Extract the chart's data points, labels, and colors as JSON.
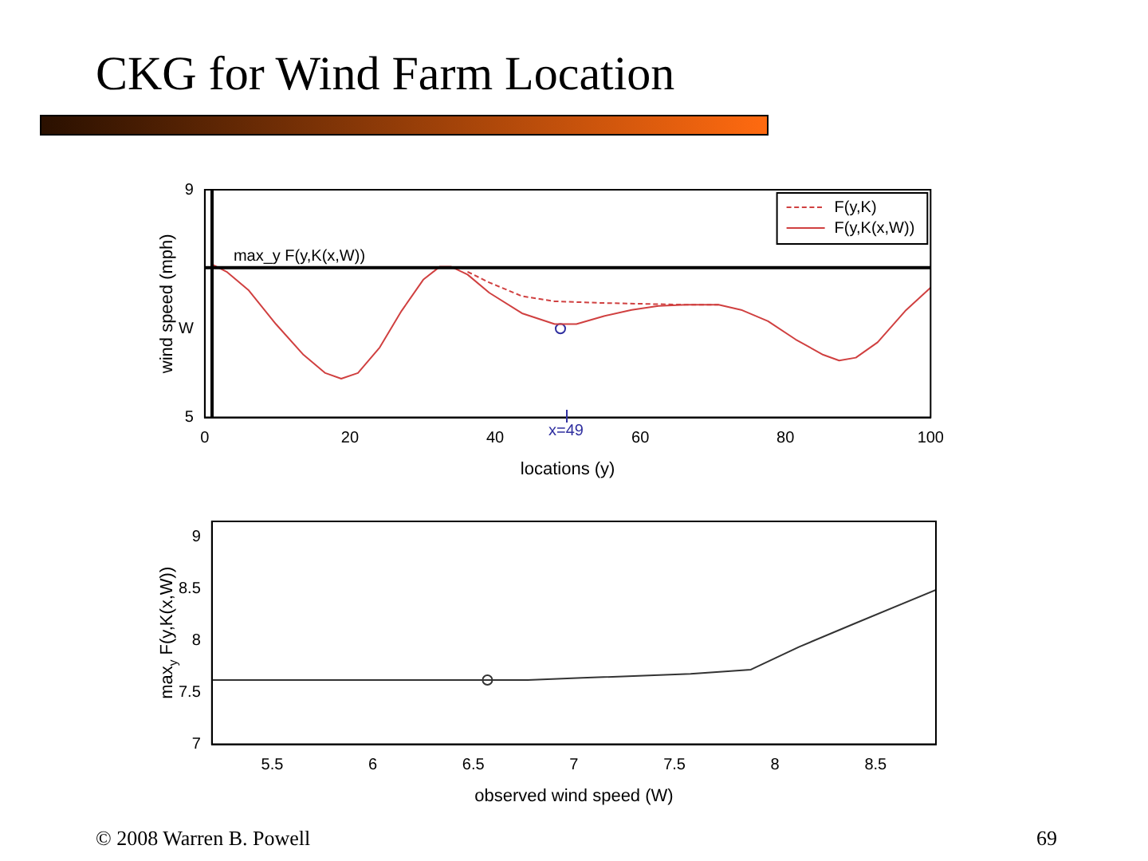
{
  "chart_data": [
    {
      "type": "line",
      "title": "CKG for Wind Farm Location",
      "xlabel": "locations (y)",
      "ylabel": "wind speed (mph)",
      "xlim": [
        0,
        100
      ],
      "xticks": [
        0,
        20,
        40,
        60,
        80,
        100
      ],
      "ylim": [
        5,
        9
      ],
      "yticks": [
        5,
        {
          "value": 6.56,
          "label": "W"
        },
        9
      ],
      "grid": false,
      "legend": "top right",
      "series": [
        {
          "name": "F(y,K)",
          "type": "line",
          "line_style": "dashed",
          "color": "#d04040",
          "x": [
            36.2,
            39.2,
            43.7,
            48.2,
            55.0,
            62.5,
            66.3,
            70.8
          ],
          "values": [
            7.56,
            7.37,
            7.13,
            7.04,
            7.01,
            6.99,
            6.98,
            6.98
          ]
        },
        {
          "name": "F(y,K(x,W))",
          "type": "line",
          "line_style": "solid",
          "color": "#d04040",
          "x": [
            1,
            3,
            6,
            9.8,
            13.6,
            16.6,
            18.8,
            21.1,
            24.1,
            27.1,
            30.1,
            32.4,
            33.9,
            36.2,
            39.2,
            43.7,
            48.2,
            51.2,
            55.0,
            58.8,
            62.5,
            66.3,
            70.8,
            73.9,
            77.6,
            81.4,
            85.2,
            87.4,
            89.7,
            92.7,
            96.5,
            100
          ],
          "values": [
            7.69,
            7.56,
            7.24,
            6.64,
            6.1,
            5.78,
            5.68,
            5.78,
            6.23,
            6.87,
            7.42,
            7.65,
            7.65,
            7.51,
            7.19,
            6.83,
            6.64,
            6.64,
            6.78,
            6.89,
            6.96,
            6.98,
            6.98,
            6.89,
            6.69,
            6.37,
            6.1,
            6.0,
            6.05,
            6.32,
            6.87,
            7.28
          ]
        },
        {
          "type": "scatter",
          "marker": "circle",
          "color": "#3030a0",
          "x": [
            49
          ],
          "values": [
            6.56
          ]
        }
      ],
      "ref_lines": [
        {
          "axis": "y",
          "value": 7.63,
          "label": "max_y F(y,K(x,W))",
          "color": "#000000"
        },
        {
          "axis": "x",
          "value": 1,
          "color": "#000000"
        }
      ],
      "annotations": [
        "x=49"
      ]
    },
    {
      "type": "line",
      "xlabel": "observed wind speed (W)",
      "ylabel": "max$_{y}$ F(y,K(x,W))",
      "xlim": [
        5.2,
        8.8
      ],
      "xticks": [
        5.5,
        6,
        6.5,
        7,
        7.5,
        8,
        8.5
      ],
      "ylim": [
        7,
        9.15
      ],
      "yticks": [
        7,
        7.5,
        8,
        8.5,
        9
      ],
      "grid": false,
      "series": [
        {
          "type": "line",
          "line_style": "solid",
          "color": "#333333",
          "x": [
            5.2,
            6.77,
            7.04,
            7.58,
            7.88,
            8.12,
            8.39,
            8.8
          ],
          "values": [
            7.62,
            7.62,
            7.64,
            7.68,
            7.72,
            7.94,
            8.16,
            8.49
          ]
        },
        {
          "type": "scatter",
          "marker": "circle",
          "color": "#333333",
          "x": [
            6.57
          ],
          "values": [
            7.62
          ]
        }
      ],
      "annotations": [
        "© 2008 Warren B. Powell",
        "69"
      ]
    }
  ]
}
